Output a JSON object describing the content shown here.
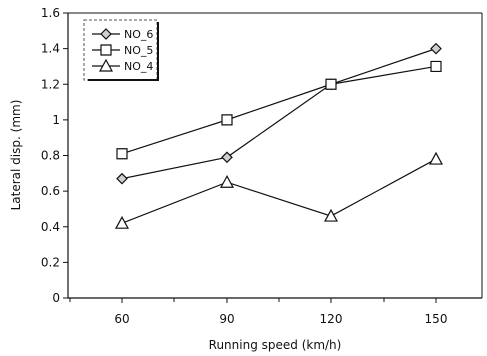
{
  "chart_data": {
    "type": "line",
    "title": "",
    "xlabel": "Running speed (km/h)",
    "ylabel": "Lateral disp. (mm)",
    "categories": [
      "60",
      "90",
      "120",
      "150"
    ],
    "ylim": [
      0,
      1.6
    ],
    "yticks": [
      "0",
      "0.2",
      "0.4",
      "0.6",
      "0.8",
      "1",
      "1.2",
      "1.4",
      "1.6"
    ],
    "grid": false,
    "legend_position": "top-left",
    "series": [
      {
        "name": "NO_6",
        "marker": "diamond",
        "color": "#111111",
        "values": [
          0.67,
          0.79,
          1.2,
          1.4
        ]
      },
      {
        "name": "NO_5",
        "marker": "square",
        "color": "#111111",
        "values": [
          0.81,
          1.0,
          1.2,
          1.3
        ]
      },
      {
        "name": "NO_4",
        "marker": "triangle",
        "color": "#111111",
        "values": [
          0.42,
          0.65,
          0.46,
          0.78
        ]
      }
    ]
  }
}
